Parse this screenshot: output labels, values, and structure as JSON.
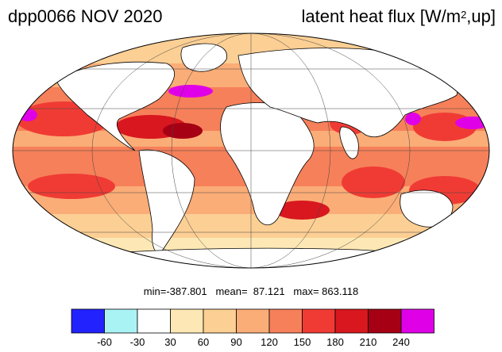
{
  "title": {
    "left": "dpp0066 NOV 2020",
    "right_prefix": "latent heat flux [W/m",
    "right_sup": "2",
    "right_suffix": ",up]"
  },
  "stats": "min=-387.801   mean=  87.121   max= 863.118",
  "colorbar": {
    "levels": [
      "-60",
      "-30",
      "30",
      "60",
      "90",
      "120",
      "150",
      "180",
      "210",
      "240"
    ],
    "colors": [
      "#2222ff",
      "#aaf3f5",
      "#ffffff",
      "#fde8b5",
      "#fccf94",
      "#fbad77",
      "#f6805a",
      "#f03b34",
      "#d8171f",
      "#a60014",
      "#e000e8"
    ]
  },
  "map": {
    "projection": "mollweide",
    "land_color": "#ffffff",
    "coastline_color": "#000000"
  }
}
